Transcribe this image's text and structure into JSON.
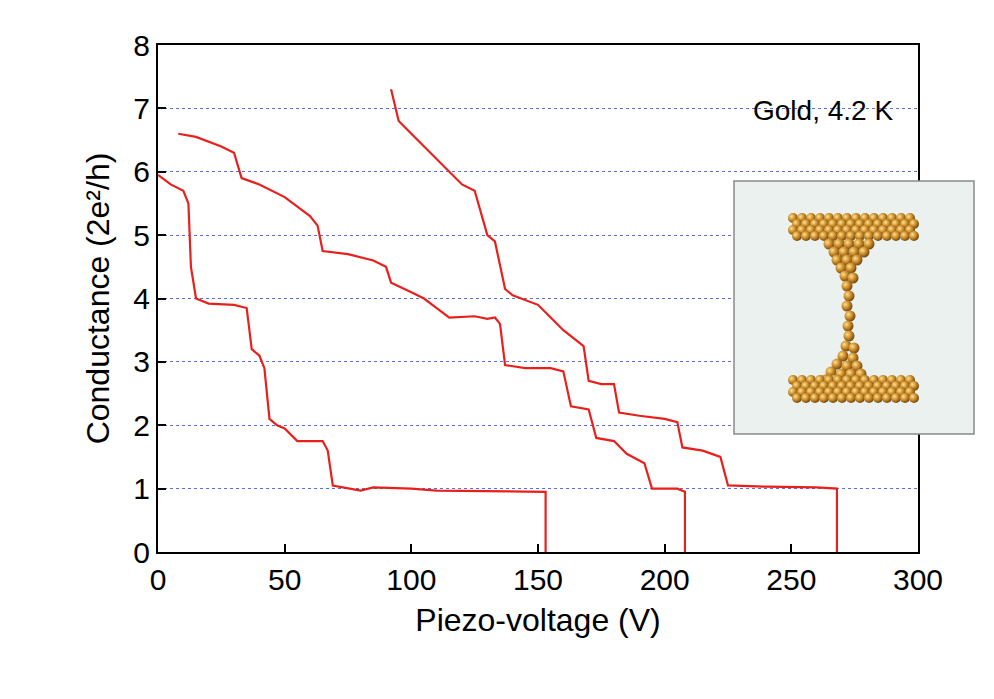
{
  "chart_data": {
    "type": "line",
    "annotation": "Gold, 4.2 K",
    "xlabel": "Piezo-voltage (V)",
    "ylabel": "Conductance (2e²/h)",
    "xlim": [
      0,
      300
    ],
    "xticks": [
      0,
      50,
      100,
      150,
      200,
      250,
      300
    ],
    "ylim": [
      0,
      8
    ],
    "yticks": [
      0,
      1,
      2,
      3,
      4,
      5,
      6,
      7,
      8
    ],
    "grid": true,
    "series": [
      {
        "color": "#e8201c",
        "x": [
          0,
          5,
          10,
          12,
          13,
          15,
          20,
          30,
          35,
          37,
          40,
          42,
          44,
          47,
          50,
          55,
          65,
          67,
          69,
          75,
          80,
          85,
          100,
          110,
          153,
          153
        ],
        "values": [
          5.95,
          5.8,
          5.7,
          5.5,
          4.5,
          4.0,
          3.92,
          3.9,
          3.85,
          3.2,
          3.1,
          2.9,
          2.1,
          2.0,
          1.95,
          1.75,
          1.75,
          1.6,
          1.05,
          1.0,
          0.97,
          1.02,
          1.0,
          0.97,
          0.95,
          0
        ]
      },
      {
        "color": "#e8201c",
        "x": [
          8,
          15,
          25,
          30,
          33,
          40,
          50,
          60,
          63,
          65,
          75,
          85,
          90,
          92,
          100,
          105,
          110,
          115,
          125,
          130,
          133,
          135,
          137,
          145,
          155,
          160,
          163,
          170,
          173,
          180,
          185,
          192,
          195,
          205,
          208,
          208
        ],
        "values": [
          6.6,
          6.55,
          6.4,
          6.3,
          5.9,
          5.8,
          5.6,
          5.3,
          5.15,
          4.75,
          4.7,
          4.6,
          4.5,
          4.25,
          4.1,
          4.0,
          3.85,
          3.7,
          3.72,
          3.68,
          3.7,
          3.6,
          2.95,
          2.9,
          2.9,
          2.85,
          2.3,
          2.25,
          1.8,
          1.75,
          1.55,
          1.4,
          1.0,
          1.0,
          0.95,
          0
        ]
      },
      {
        "color": "#e8201c",
        "x": [
          92,
          95,
          100,
          105,
          110,
          115,
          120,
          125,
          128,
          130,
          133,
          135,
          137,
          140,
          150,
          155,
          160,
          168,
          170,
          175,
          180,
          182,
          190,
          200,
          205,
          207,
          215,
          222,
          225,
          240,
          260,
          268,
          268
        ],
        "values": [
          7.3,
          6.8,
          6.6,
          6.4,
          6.2,
          6.0,
          5.8,
          5.7,
          5.3,
          5.0,
          4.9,
          4.5,
          4.15,
          4.05,
          3.9,
          3.7,
          3.5,
          3.25,
          2.7,
          2.65,
          2.65,
          2.2,
          2.15,
          2.1,
          2.05,
          1.65,
          1.6,
          1.5,
          1.05,
          1.03,
          1.02,
          1.0,
          0
        ]
      }
    ]
  }
}
